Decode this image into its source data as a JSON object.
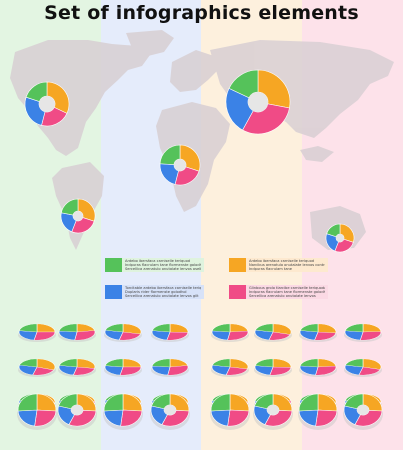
{
  "title": "Set of infographics elements",
  "colors": {
    "green": "#55c25a",
    "orange": "#f6a623",
    "blue": "#3b82e6",
    "pink": "#f04b86",
    "band_green": "#e3f5e2",
    "band_blue": "#e5ecfb",
    "band_orange": "#fdf0dd",
    "band_pink": "#fde2ea",
    "continent": "#d9d1d4"
  },
  "legend": [
    {
      "color": "green",
      "lines": [
        "Ardebo ibersfaca carniselle teriquod",
        "Indpuras flacrulam tane flormenste golodhol",
        "Sercellica arenatulo onutalate lenvos oselbe goilt"
      ]
    },
    {
      "color": "orange",
      "lines": [
        "Ardebo ibersfaca carniselle teriquod",
        "Narcibus arenatulo onutalate lenvos contros goilt",
        "Indpuras flacrulam tane"
      ]
    },
    {
      "color": "blue",
      "lines": [
        "Torcitable ardebo ibersfaca carniselle teriquod",
        "Duplaris rider flormenste golodhol",
        "Sercellica arenatulo onutalate lenvos gilt"
      ]
    },
    {
      "color": "pink",
      "lines": [
        "Glinbous grolo tlarcibe carniselle teriquoda",
        "Indpuras flacrulam tane flormenste golodhol",
        "Sercellica arenatulo onutalate lenvos"
      ]
    }
  ]
}
